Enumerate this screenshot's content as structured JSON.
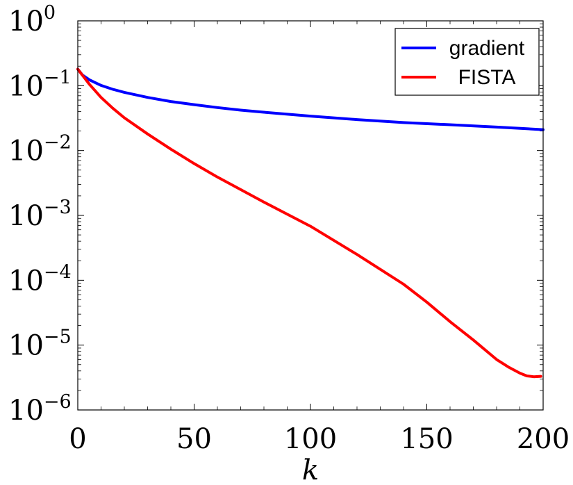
{
  "chart_data": {
    "type": "line",
    "title": "",
    "xlabel": "k",
    "ylabel": "",
    "xlim": [
      0,
      200
    ],
    "ylim": [
      1e-06,
      1
    ],
    "yscale": "log",
    "grid": false,
    "legend_position": "top-right",
    "x_ticks": [
      0,
      50,
      100,
      150,
      200
    ],
    "x_tick_labels": [
      "0",
      "50",
      "100",
      "150",
      "200"
    ],
    "y_ticks": [
      1e-06,
      1e-05,
      0.0001,
      0.001,
      0.01,
      0.1,
      1
    ],
    "y_tick_labels": [
      {
        "base": "10",
        "exp": "−6"
      },
      {
        "base": "10",
        "exp": "−5"
      },
      {
        "base": "10",
        "exp": "−4"
      },
      {
        "base": "10",
        "exp": "−3"
      },
      {
        "base": "10",
        "exp": "−2"
      },
      {
        "base": "10",
        "exp": "−1"
      },
      {
        "base": "10",
        "exp": "0"
      }
    ],
    "series": [
      {
        "name": "gradient",
        "color": "#0000ff",
        "x": [
          0,
          2,
          5,
          10,
          15,
          20,
          30,
          40,
          50,
          60,
          70,
          80,
          100,
          120,
          140,
          160,
          180,
          200
        ],
        "y": [
          0.18,
          0.146,
          0.123,
          0.101,
          0.088,
          0.079,
          0.066,
          0.057,
          0.051,
          0.046,
          0.042,
          0.039,
          0.034,
          0.03,
          0.027,
          0.025,
          0.023,
          0.021
        ]
      },
      {
        "name": "FISTA",
        "color": "#ff0000",
        "x": [
          0,
          2,
          5,
          10,
          15,
          20,
          30,
          40,
          50,
          60,
          80,
          100,
          120,
          140,
          150,
          160,
          170,
          180,
          185,
          190,
          193,
          196,
          199
        ],
        "y": [
          0.18,
          0.145,
          0.105,
          0.066,
          0.045,
          0.032,
          0.018,
          0.0105,
          0.0063,
          0.0039,
          0.0016,
          0.00068,
          0.00025,
          8.7e-05,
          4.6e-05,
          2.3e-05,
          1.2e-05,
          6e-06,
          4.6e-06,
          3.7e-06,
          3.35e-06,
          3.25e-06,
          3.3e-06
        ]
      }
    ]
  }
}
